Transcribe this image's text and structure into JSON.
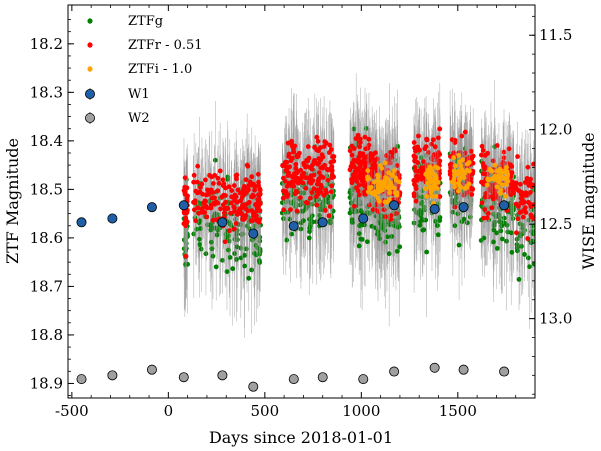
{
  "chart_data": {
    "type": "scatter",
    "xlabel": "Days since 2018-01-01",
    "ylabel_left": "ZTF Magnitude",
    "ylabel_right": "WISE magnitude",
    "xlim": [
      -520,
      1900
    ],
    "ylim_left": [
      18.12,
      18.93
    ],
    "ylim_right": [
      11.34,
      13.42
    ],
    "x_ticks": [
      -500,
      0,
      500,
      1000,
      1500
    ],
    "y_ticks_left": [
      18.2,
      18.3,
      18.4,
      18.5,
      18.6,
      18.7,
      18.8,
      18.9
    ],
    "y_ticks_right": [
      11.5,
      12.0,
      12.5,
      13.0
    ],
    "legend": {
      "placement": "top-left",
      "entries": [
        "ZTFg",
        "ZTFr - 0.51",
        "ZTFi - 1.0",
        "W1",
        "W2"
      ]
    },
    "colors": {
      "ztfg": "#008000",
      "ztfr": "#ff0000",
      "ztfi": "#ffa500",
      "w1": "#1f5fa8",
      "w2": "#a0a0a0"
    },
    "series": [
      {
        "name": "W1",
        "axis": "right",
        "x": [
          -450,
          -290,
          -85,
          80,
          280,
          440,
          650,
          800,
          1010,
          1170,
          1380,
          1530,
          1740
        ],
        "y": [
          12.49,
          12.47,
          12.41,
          12.4,
          12.49,
          12.55,
          12.51,
          12.49,
          12.47,
          12.4,
          12.42,
          12.41,
          12.4
        ]
      },
      {
        "name": "W2",
        "axis": "right",
        "x": [
          -450,
          -290,
          -85,
          80,
          280,
          440,
          650,
          800,
          1010,
          1170,
          1380,
          1530,
          1740
        ],
        "y": [
          13.32,
          13.3,
          13.27,
          13.31,
          13.3,
          13.36,
          13.32,
          13.31,
          13.32,
          13.28,
          13.26,
          13.27,
          13.28
        ]
      }
    ],
    "ztf_seasons": [
      {
        "start": 80,
        "end": 100,
        "n": 30,
        "r_center": 18.55,
        "g_offset": 0.05
      },
      {
        "start": 130,
        "end": 340,
        "n": 80,
        "r_center": 18.52,
        "g_offset": 0.05
      },
      {
        "start": 340,
        "end": 480,
        "n": 90,
        "r_center": 18.52,
        "g_offset": 0.06
      },
      {
        "start": 590,
        "end": 860,
        "n": 160,
        "r_center": 18.47,
        "g_offset": 0.05
      },
      {
        "start": 940,
        "end": 1080,
        "n": 130,
        "r_center": 18.46,
        "g_offset": 0.05
      },
      {
        "start": 1080,
        "end": 1200,
        "n": 110,
        "r_center": 18.49,
        "g_offset": 0.05
      },
      {
        "start": 1270,
        "end": 1410,
        "n": 100,
        "r_center": 18.46,
        "g_offset": 0.04
      },
      {
        "start": 1460,
        "end": 1580,
        "n": 90,
        "r_center": 18.46,
        "g_offset": 0.04
      },
      {
        "start": 1620,
        "end": 1790,
        "n": 100,
        "r_center": 18.48,
        "g_offset": 0.05
      },
      {
        "start": 1800,
        "end": 1900,
        "n": 50,
        "r_center": 18.52,
        "g_offset": 0.06
      }
    ],
    "ztfi_seasons": [
      {
        "start": 1030,
        "end": 1200,
        "n": 60,
        "center": 18.49
      },
      {
        "start": 1330,
        "end": 1400,
        "n": 40,
        "center": 18.49
      },
      {
        "start": 1470,
        "end": 1560,
        "n": 35,
        "center": 18.47
      },
      {
        "start": 1650,
        "end": 1760,
        "n": 40,
        "center": 18.48
      }
    ]
  }
}
